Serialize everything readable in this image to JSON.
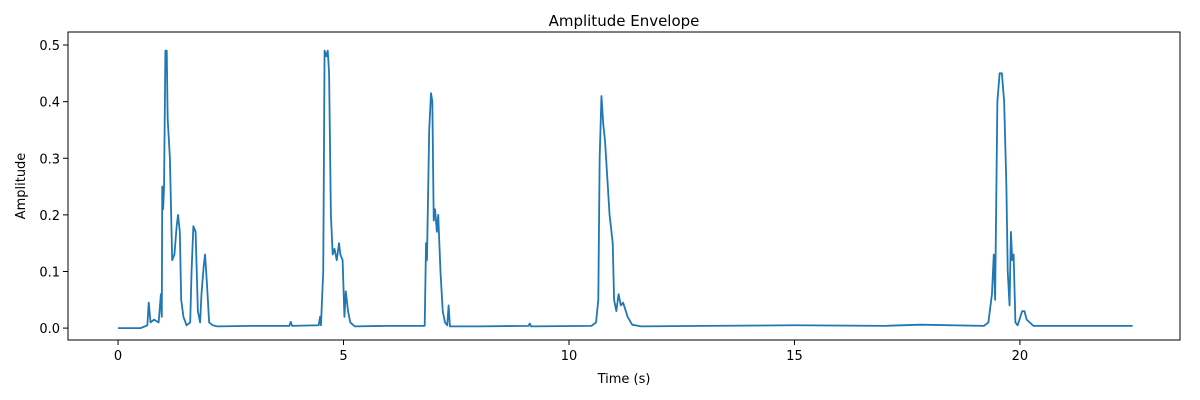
{
  "chart_data": {
    "type": "line",
    "title": "Amplitude Envelope",
    "x_label": "Time (s)",
    "y_label": "Amplitude",
    "color": "#1f77b4",
    "x": [
      0,
      0.5,
      0.65,
      0.68,
      0.72,
      0.8,
      0.9,
      0.95,
      0.97,
      0.98,
      1.0,
      1.02,
      1.05,
      1.08,
      1.1,
      1.15,
      1.2,
      1.25,
      1.3,
      1.33,
      1.37,
      1.4,
      1.45,
      1.52,
      1.6,
      1.63,
      1.67,
      1.72,
      1.77,
      1.82,
      1.85,
      1.9,
      1.93,
      1.97,
      2.02,
      2.1,
      2.2,
      3.0,
      3.8,
      3.83,
      3.86,
      4.45,
      4.48,
      4.5,
      4.55,
      4.58,
      4.62,
      4.65,
      4.68,
      4.72,
      4.76,
      4.8,
      4.85,
      4.9,
      4.93,
      4.98,
      5.02,
      5.05,
      5.1,
      5.15,
      5.25,
      6.0,
      6.8,
      6.83,
      6.85,
      6.9,
      6.94,
      6.97,
      7.0,
      7.03,
      7.07,
      7.1,
      7.15,
      7.2,
      7.25,
      7.3,
      7.33,
      7.36,
      8.0,
      9.1,
      9.13,
      9.16,
      10.5,
      10.6,
      10.65,
      10.68,
      10.72,
      10.76,
      10.8,
      10.9,
      10.97,
      11.0,
      11.05,
      11.1,
      11.15,
      11.2,
      11.3,
      11.4,
      11.6,
      13,
      15,
      17,
      17.8,
      19.2,
      19.3,
      19.38,
      19.42,
      19.45,
      19.5,
      19.55,
      19.6,
      19.65,
      19.7,
      19.73,
      19.77,
      19.8,
      19.83,
      19.86,
      19.9,
      19.95,
      20.05,
      20.1,
      20.15,
      20.3,
      22.5
    ],
    "values": [
      0,
      0,
      0.005,
      0.045,
      0.01,
      0.015,
      0.01,
      0.06,
      0.02,
      0.25,
      0.21,
      0.25,
      0.49,
      0.49,
      0.37,
      0.3,
      0.12,
      0.13,
      0.18,
      0.2,
      0.17,
      0.05,
      0.02,
      0.005,
      0.01,
      0.1,
      0.18,
      0.17,
      0.03,
      0.01,
      0.06,
      0.11,
      0.13,
      0.08,
      0.01,
      0.005,
      0.003,
      0.004,
      0.004,
      0.011,
      0.004,
      0.005,
      0.02,
      0.005,
      0.1,
      0.49,
      0.48,
      0.49,
      0.45,
      0.2,
      0.13,
      0.14,
      0.12,
      0.15,
      0.13,
      0.12,
      0.02,
      0.065,
      0.03,
      0.01,
      0.003,
      0.004,
      0.004,
      0.15,
      0.12,
      0.35,
      0.415,
      0.4,
      0.19,
      0.21,
      0.17,
      0.2,
      0.1,
      0.03,
      0.01,
      0.005,
      0.04,
      0.003,
      0.003,
      0.004,
      0.008,
      0.003,
      0.004,
      0.01,
      0.05,
      0.3,
      0.41,
      0.36,
      0.33,
      0.2,
      0.15,
      0.05,
      0.03,
      0.06,
      0.04,
      0.045,
      0.02,
      0.006,
      0.003,
      0.004,
      0.005,
      0.004,
      0.006,
      0.004,
      0.01,
      0.06,
      0.13,
      0.05,
      0.4,
      0.45,
      0.45,
      0.4,
      0.25,
      0.1,
      0.04,
      0.17,
      0.12,
      0.13,
      0.01,
      0.005,
      0.03,
      0.03,
      0.015,
      0.004,
      0.004
    ],
    "xlim": [
      -1.11,
      23.55
    ],
    "ylim": [
      -0.021,
      0.523
    ],
    "xticks": [
      0,
      5,
      10,
      15,
      20
    ],
    "yticks": [
      {
        "value": 0,
        "label": "0.0"
      },
      {
        "value": 0.1,
        "label": "0.1"
      },
      {
        "value": 0.2,
        "label": "0.2"
      },
      {
        "value": 0.3,
        "label": "0.3"
      },
      {
        "value": 0.4,
        "label": "0.4"
      },
      {
        "value": 0.5,
        "label": "0.5"
      }
    ]
  }
}
